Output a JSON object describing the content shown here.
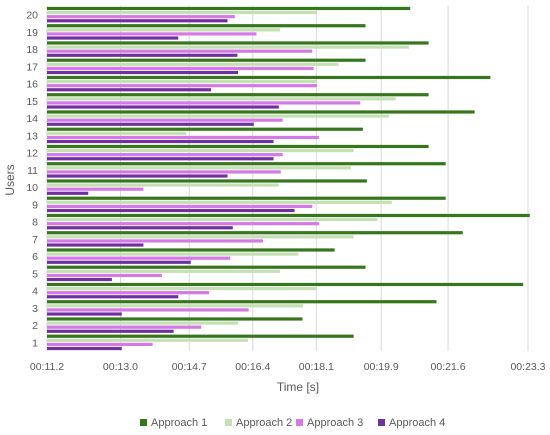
{
  "chart_data": {
    "type": "bar",
    "orientation": "horizontal",
    "xlabel": "Time [s]",
    "ylabel": "Users",
    "xlim_seconds": [
      671.2,
      1403.3
    ],
    "x_ticks": [
      {
        "value": 671.2,
        "label": "00:11.2"
      },
      {
        "value": 783.0,
        "label": "00:13.0"
      },
      {
        "value": 887.7,
        "label": "00:14.7"
      },
      {
        "value": 984.4,
        "label": "00:16.4"
      },
      {
        "value": 1081.1,
        "label": "00:18.1"
      },
      {
        "value": 1179.9,
        "label": "00:19.9"
      },
      {
        "value": 1281.6,
        "label": "00:21.6"
      },
      {
        "value": 1403.3,
        "label": "00:23.3"
      }
    ],
    "grid": true,
    "legend_position": "bottom",
    "categories": [
      "1",
      "2",
      "3",
      "4",
      "5",
      "6",
      "7",
      "8",
      "9",
      "10",
      "11",
      "12",
      "13",
      "14",
      "15",
      "16",
      "17",
      "18",
      "19",
      "20"
    ],
    "series": [
      {
        "name": "Approach 1",
        "color": "#38761d",
        "values": [
          1138,
          1060,
          1264,
          1396,
          1156,
          1109,
          1304,
          1406,
          1278,
          1158,
          1278,
          1252,
          1152,
          1322,
          1252,
          1346,
          1156,
          1252,
          1156,
          1224
        ]
      },
      {
        "name": "Approach 2",
        "color": "#c5e0b4",
        "values": [
          977,
          962,
          1061,
          1082,
          1026,
          1054,
          1138,
          1174,
          1196,
          1024,
          1134,
          1138,
          883,
          1192,
          1202,
          1082,
          1115,
          1222,
          1026,
          1082
        ]
      },
      {
        "name": "Approach 3",
        "color": "#d579e6",
        "values": [
          832,
          906,
          978,
          918,
          846,
          950,
          1000,
          1085,
          1075,
          818,
          1027,
          1030,
          1085,
          1030,
          1148,
          1082,
          1077,
          1075,
          990,
          957
        ]
      },
      {
        "name": "Approach 4",
        "color": "#7030a0",
        "values": [
          785,
          864,
          785,
          871,
          770,
          890,
          818,
          954,
          1048,
          734,
          946,
          1016,
          1016,
          986,
          1024,
          921,
          962,
          961,
          871,
          946
        ]
      }
    ]
  }
}
